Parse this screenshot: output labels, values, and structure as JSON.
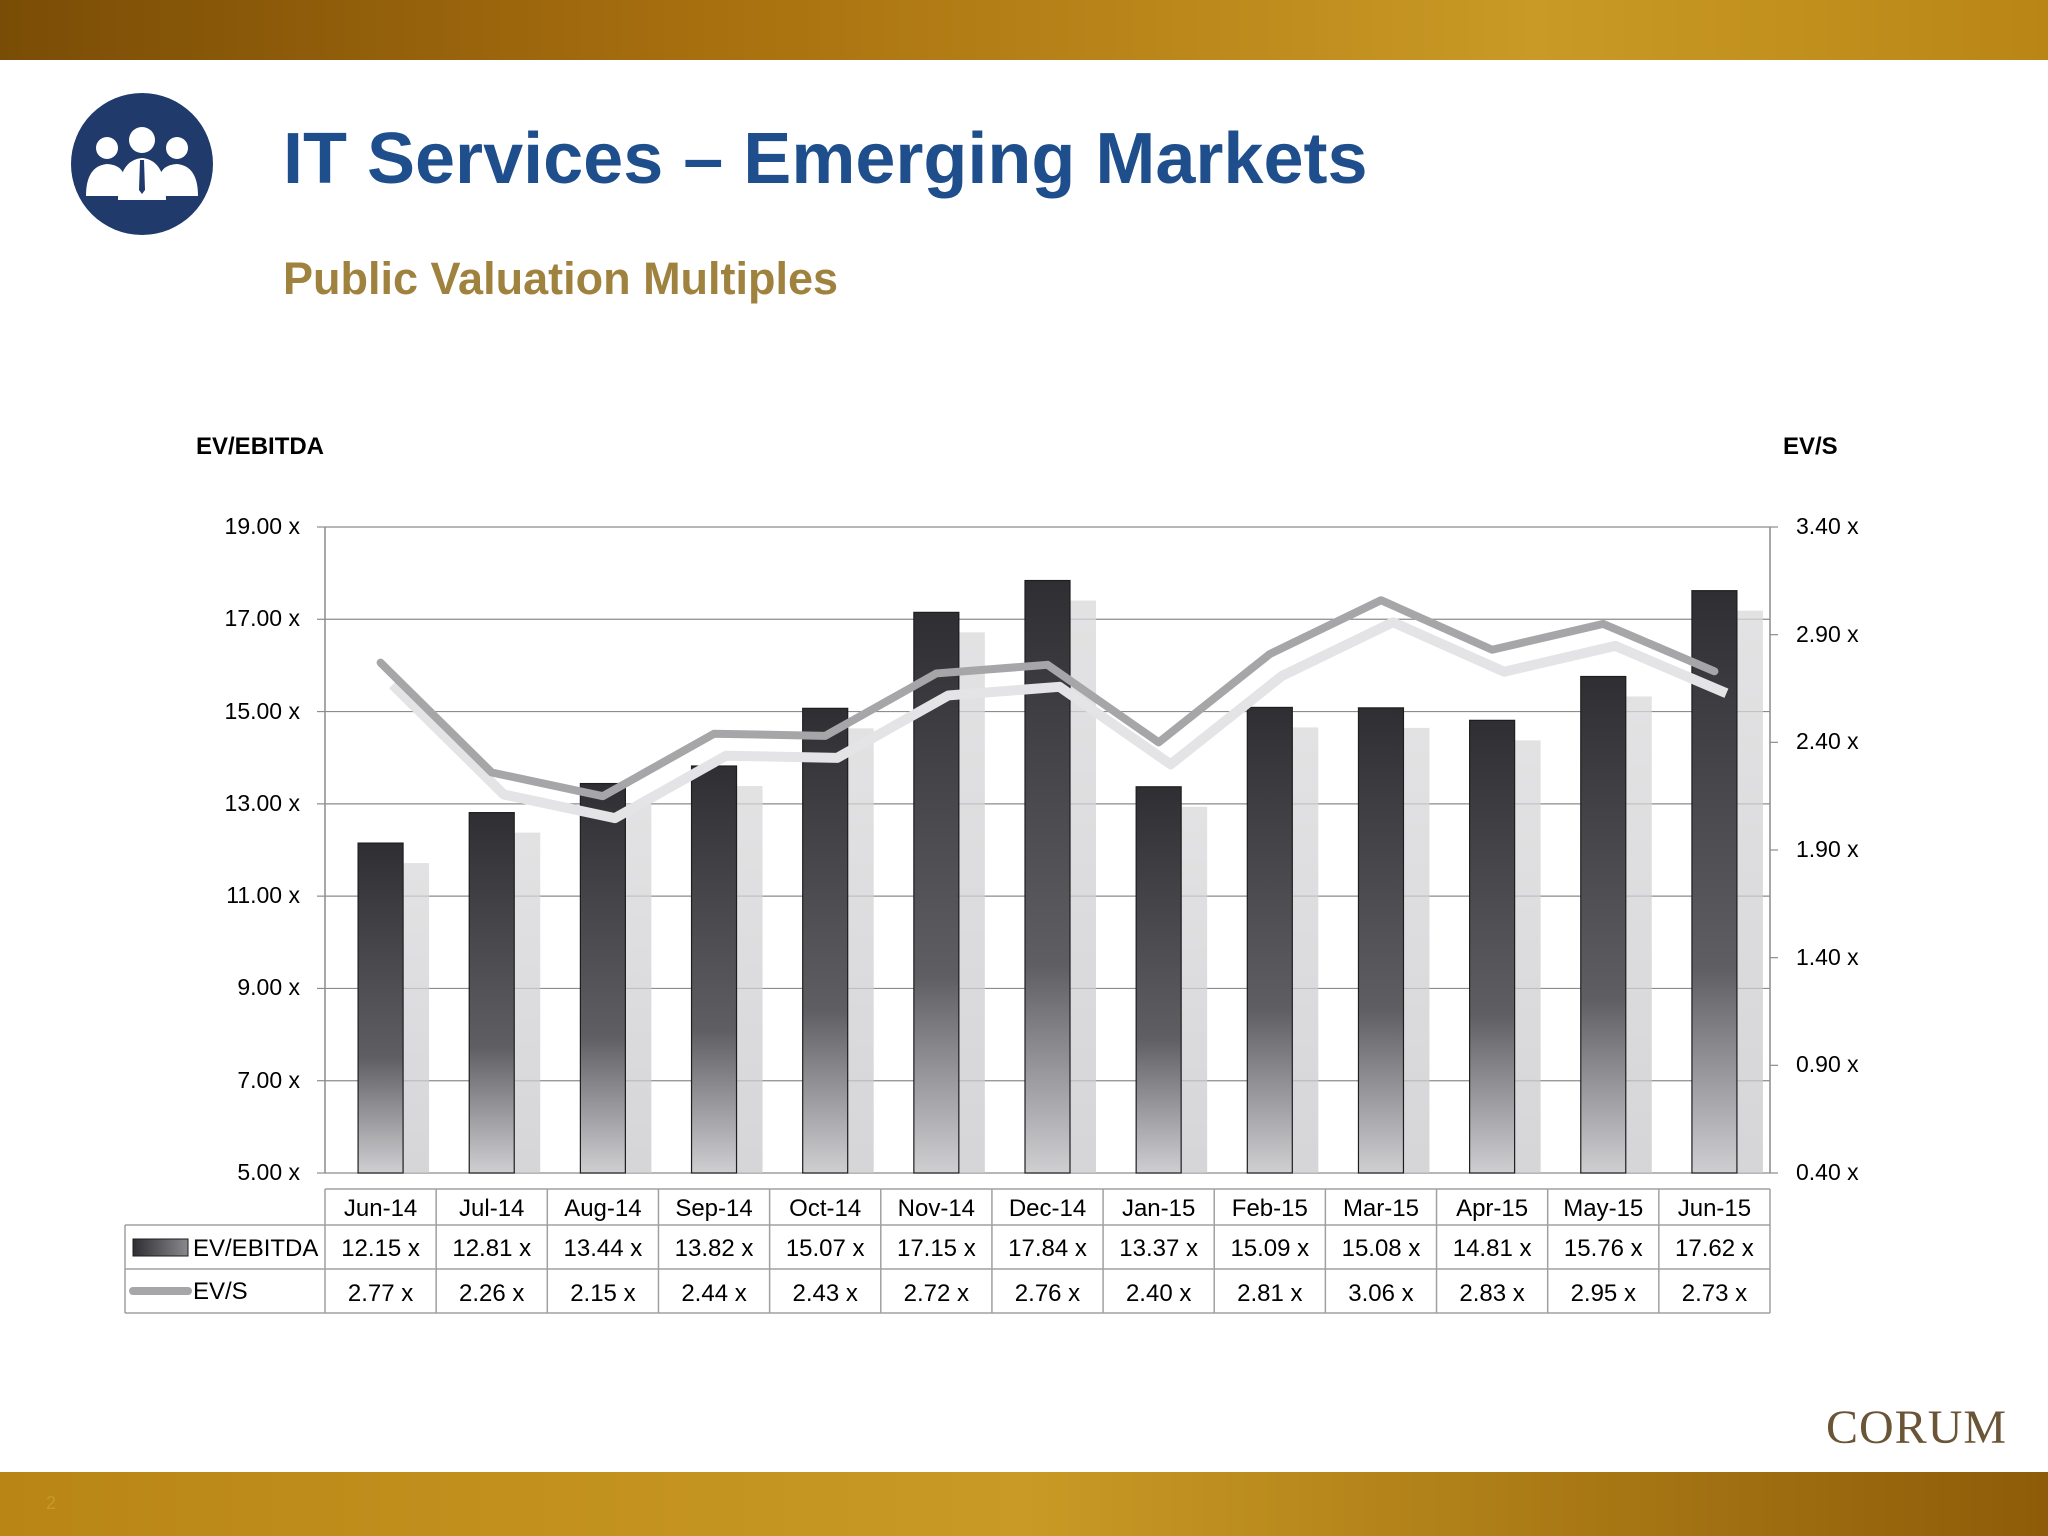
{
  "title": "IT Services – Emerging Markets",
  "subtitle": "Public Valuation Multiples",
  "brand": "CORUM",
  "page_number": "2",
  "colors": {
    "accent_gold": "#b98615",
    "title_blue": "#1f4e8c",
    "subtitle_gold": "#a0823f",
    "bar_dark": "#3a393d",
    "line_gray": "#a6a6a8",
    "logo_navy": "#1f3a6b"
  },
  "icons": {
    "logo": "people-group-icon"
  },
  "chart_data": {
    "type": "bar",
    "categories": [
      "Jun-14",
      "Jul-14",
      "Aug-14",
      "Sep-14",
      "Oct-14",
      "Nov-14",
      "Dec-14",
      "Jan-15",
      "Feb-15",
      "Mar-15",
      "Apr-15",
      "May-15",
      "Jun-15"
    ],
    "series": [
      {
        "name": "EV/EBITDA",
        "type": "bar",
        "axis": "left",
        "values": [
          12.15,
          12.81,
          13.44,
          13.82,
          15.07,
          17.15,
          17.84,
          13.37,
          15.09,
          15.08,
          14.81,
          15.76,
          17.62
        ],
        "labels": [
          "12.15 x",
          "12.81 x",
          "13.44 x",
          "13.82 x",
          "15.07 x",
          "17.15 x",
          "17.84 x",
          "13.37 x",
          "15.09 x",
          "15.08 x",
          "14.81 x",
          "15.76 x",
          "17.62 x"
        ]
      },
      {
        "name": "EV/S",
        "type": "line",
        "axis": "right",
        "values": [
          2.77,
          2.26,
          2.15,
          2.44,
          2.43,
          2.72,
          2.76,
          2.4,
          2.81,
          3.06,
          2.83,
          2.95,
          2.73
        ],
        "labels": [
          "2.77 x",
          "2.26 x",
          "2.15 x",
          "2.44 x",
          "2.43 x",
          "2.72 x",
          "2.76 x",
          "2.40 x",
          "2.81 x",
          "3.06 x",
          "2.83 x",
          "2.95 x",
          "2.73 x"
        ]
      }
    ],
    "ylabel": "EV/EBITDA",
    "y2label": "EV/S",
    "ylim": [
      5,
      19
    ],
    "y2lim": [
      0.4,
      3.4
    ],
    "yticks": [
      "19.00 x",
      "17.00 x",
      "15.00 x",
      "13.00 x",
      "11.00 x",
      "9.00 x",
      "7.00 x",
      "5.00 x"
    ],
    "y2ticks": [
      "3.40 x",
      "2.90 x",
      "2.40 x",
      "1.90 x",
      "1.40 x",
      "0.90 x",
      "0.40 x"
    ],
    "grid": true,
    "legend": "data-table"
  }
}
